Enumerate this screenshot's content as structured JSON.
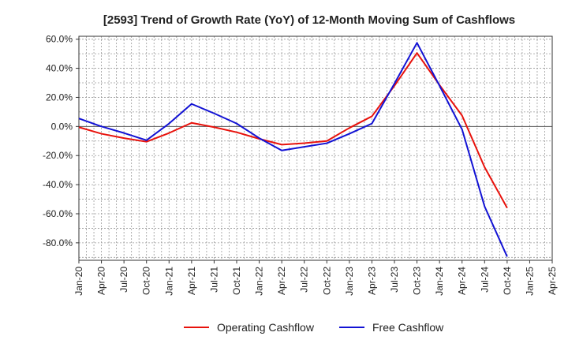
{
  "chart_data": {
    "type": "line",
    "title": "[2593]  Trend of Growth Rate (YoY) of 12-Month Moving Sum of Cashflows",
    "xlabel": "",
    "ylabel": "",
    "ylim": [
      -92,
      62
    ],
    "yticks": [
      60,
      40,
      20,
      0,
      -20,
      -40,
      -60,
      -80
    ],
    "ytick_labels": [
      "60.0%",
      "40.0%",
      "20.0%",
      "0.0%",
      "-20.0%",
      "-40.0%",
      "-60.0%",
      "-80.0%"
    ],
    "x_tick_labels": [
      "Jan-20",
      "Apr-20",
      "Jul-20",
      "Oct-20",
      "Jan-21",
      "Apr-21",
      "Jul-21",
      "Oct-21",
      "Jan-22",
      "Apr-22",
      "Jul-22",
      "Oct-22",
      "Jan-23",
      "Apr-23",
      "Jul-23",
      "Oct-23",
      "Jan-24",
      "Apr-24",
      "Jul-24",
      "Oct-24",
      "Jan-25",
      "Apr-25"
    ],
    "grid": true,
    "zero_line": true,
    "legend_position": "bottom-center",
    "series": [
      {
        "name": "Operating Cashflow",
        "color": "#e8120c",
        "values": [
          -0.5,
          -5.0,
          -8.0,
          -10.5,
          -4.5,
          2.5,
          -0.5,
          -4.0,
          -8.5,
          -12.5,
          -11.5,
          -10.0,
          -1.0,
          7.0,
          28.0,
          50.5,
          28.5,
          7.5,
          -28.0,
          -56.0,
          null,
          null
        ]
      },
      {
        "name": "Free Cashflow",
        "color": "#1212d4",
        "values": [
          5.5,
          0.0,
          -4.5,
          -9.5,
          2.0,
          15.5,
          9.0,
          2.0,
          -8.0,
          -16.5,
          -14.0,
          -11.5,
          -5.0,
          2.0,
          29.5,
          57.5,
          28.0,
          -2.0,
          -55.0,
          -89.5,
          null,
          null
        ]
      }
    ]
  }
}
